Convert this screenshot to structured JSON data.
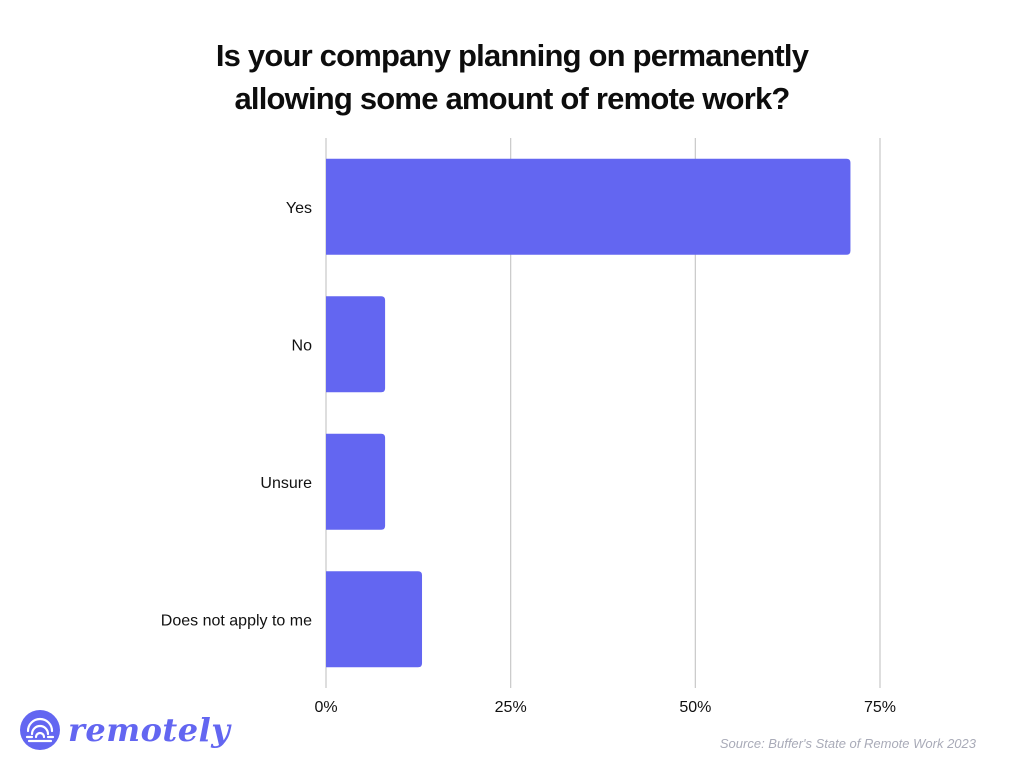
{
  "title_lines": [
    "Is your company planning on permanently",
    "allowing some amount of remote work?"
  ],
  "chart_data": {
    "type": "bar",
    "orientation": "horizontal",
    "title": "Is your company planning on permanently allowing some amount of remote work?",
    "categories": [
      "Yes",
      "No",
      "Unsure",
      "Does not apply to me"
    ],
    "values": [
      71,
      8,
      8,
      13
    ],
    "unit": "%",
    "xlim": [
      0,
      75
    ],
    "xticks": [
      0,
      25,
      50,
      75
    ],
    "xtick_labels": [
      "0%",
      "25%",
      "50%",
      "75%"
    ],
    "grid": true,
    "bar_color": "#6366f1",
    "gridline_color": "#c8c8c8"
  },
  "logo": {
    "text": "remotely",
    "color": "#6366f1",
    "icon": "remotely-logo-icon"
  },
  "source": "Source: Buffer's State of Remote Work 2023"
}
